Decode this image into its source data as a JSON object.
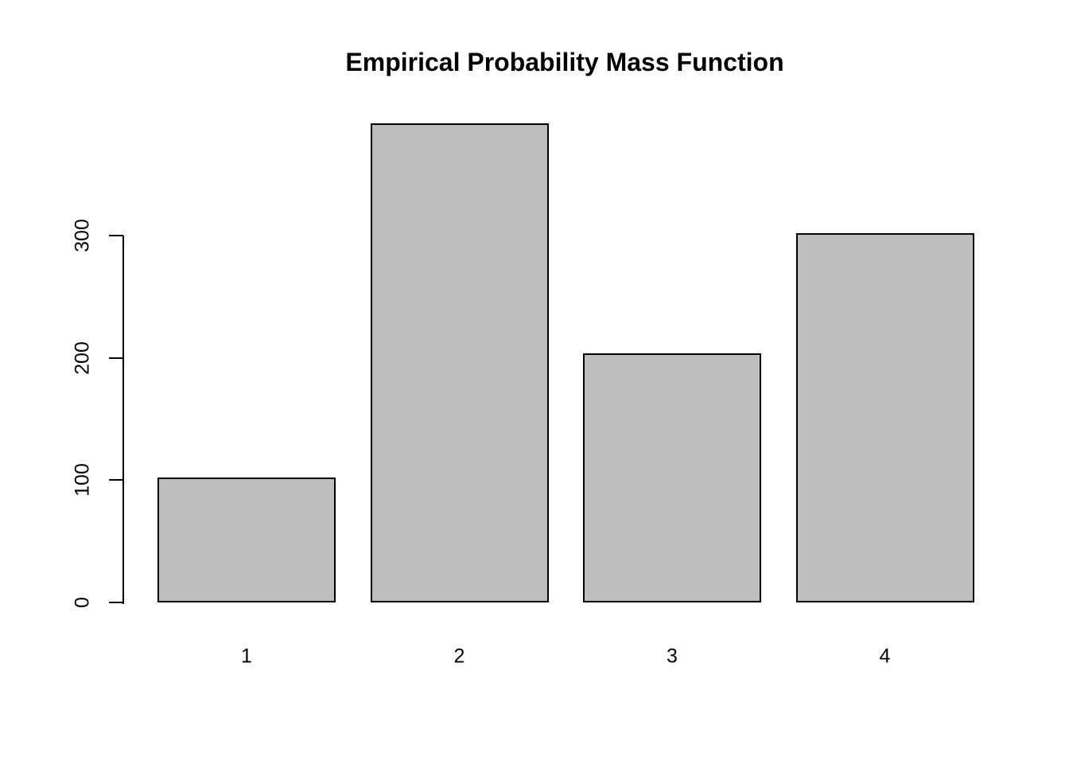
{
  "chart_data": {
    "type": "bar",
    "title": "Empirical Probability Mass Function",
    "categories": [
      "1",
      "2",
      "3",
      "4"
    ],
    "values": [
      102,
      392,
      204,
      302
    ],
    "xlabel": "",
    "ylabel": "",
    "y_ticks": [
      0,
      100,
      200,
      300
    ],
    "y_axis_shown_range": [
      0,
      300
    ],
    "ylim": [
      0,
      392
    ],
    "grid": "off",
    "legend": "none",
    "bar_fill_color": "#BEBEBE",
    "bar_border_color": "#000000",
    "axis_color": "#000000",
    "background_color": "#FFFFFF"
  }
}
